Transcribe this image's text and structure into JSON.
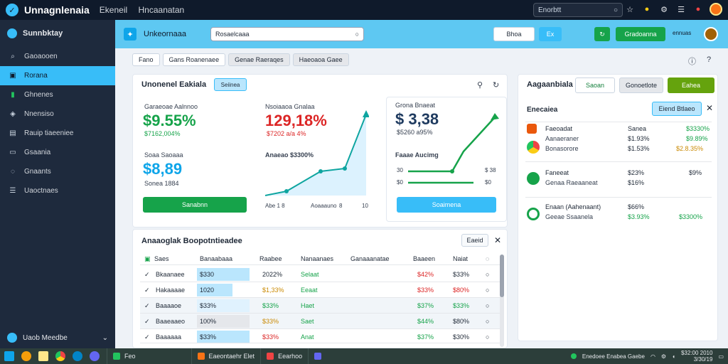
{
  "app": {
    "title": "Unnagnlenaia",
    "nav": [
      "Ekeneil",
      "Hncaanatan"
    ]
  },
  "topbar": {
    "search_text": "Enorbtt"
  },
  "sidebar": {
    "heading": "Sunnbktay",
    "items": [
      {
        "label": "Gaoaooen",
        "icon": "search-icon"
      },
      {
        "label": "Rorana",
        "icon": "dashboard-icon"
      },
      {
        "label": "Ghnenes",
        "icon": "book-icon"
      },
      {
        "label": "Nnensiso",
        "icon": "tag-icon"
      },
      {
        "label": "Rauip tiaeeniee",
        "icon": "chart-icon"
      },
      {
        "label": "Gsaania",
        "icon": "panel-icon"
      },
      {
        "label": "Gnaants",
        "icon": "chat-icon"
      },
      {
        "label": "Uaoctnaes",
        "icon": "list-icon"
      }
    ],
    "footer_label": "Uaob Meedbe"
  },
  "header": {
    "title": "Unkeornaaa",
    "search_placeholder": "Rosaelcaaa",
    "btn_white": "Bhoa",
    "btn_blue": "Ex",
    "btn_green": "Gradoanna",
    "small_text": "ennuas"
  },
  "filters": [
    "Fano",
    "Gans Roanenaee",
    "Genae Raeraqes",
    "Haeoaoa Gaee"
  ],
  "overview": {
    "title": "Unonenel Eakiala",
    "badge": "Seiinea",
    "kpi1": {
      "label": "Garaeoae Aalnnoo",
      "value": "$9.55%",
      "sub": "$7162,004%"
    },
    "kpi2": {
      "label": "Nsoiaaoa Gnalaa",
      "value": "129,18%",
      "sub": "$7202 a/a 4%"
    },
    "kpi3": {
      "label": "Soaa Saoaaa",
      "value": "$8,89",
      "sub": "Sonea 1884"
    },
    "kpi4": {
      "label": "Grona Bnaeat",
      "value": "$ 3,38",
      "sub": "$5260 a95%"
    },
    "chart_label_a": "Anaeao $3300%",
    "chart_label_b": "Faaae Aucimg",
    "axis_ticks": [
      "Abe 1 8",
      "Aoaaauno",
      "8",
      "10"
    ],
    "btn_green": "Sanabnn",
    "btn_blue": "Soaimena",
    "card_c_ticks": [
      "30",
      "$0",
      "$0",
      "$ 38",
      "$0"
    ]
  },
  "right_panel": {
    "title": "Aagaanbiala",
    "btn_green": "Saoan",
    "btn_gray": "Gonoetlote",
    "btn_lime": "Eahea",
    "subtitle": "Enecaiea",
    "light_btn": "Eiend Btlaeo",
    "rows": [
      {
        "t1": "Faeoadat",
        "t2": "Aanaeraner",
        "t3": "Bonasorore",
        "v1": "Sanea",
        "v2": "$3330%",
        "v3": "$1.93%",
        "v4": "$1.53%",
        "v5": "$9.89%",
        "v6": "$2.8.35%"
      },
      {
        "t1": "Faneeat",
        "t2": "Genaa Raeaaneat",
        "v1": "$23%",
        "v2": "$16%",
        "v3": "$9%"
      },
      {
        "t1": "Enaan (Aahenaant)",
        "t2": "Geeae Ssaanela",
        "v1": "$66%",
        "v2": "$3.93%",
        "v3": "$3300%"
      }
    ]
  },
  "table": {
    "title": "Anaaoglak Boopotntieadee",
    "btn": "Eaeid",
    "headers": [
      "Saes",
      "Banaabaaa",
      "Raabee",
      "Nanaanaes",
      "Ganaaanatae",
      "Baaeen",
      "Naiat"
    ],
    "rows": [
      {
        "name": "Bkaanaee",
        "bar": "$330",
        "c2": "2022%",
        "c3": "Selaat",
        "c4": "$42%",
        "c5": "$33%"
      },
      {
        "name": "Hakaaaae",
        "bar": "1020",
        "c2": "$1,33%",
        "c3": "Eeaat",
        "c4": "$33%",
        "c5": "$80%"
      },
      {
        "name": "Baaaaoe",
        "bar": "$33%",
        "c2": "$33%",
        "c3": "Haet",
        "c4": "$37%",
        "c5": "$33%"
      },
      {
        "name": "Baaeaaeo",
        "bar": "100%",
        "c2": "$33%",
        "c3": "Saet",
        "c4": "$44%",
        "c5": "$80%"
      },
      {
        "name": "Baaaaaa",
        "bar": "$33%",
        "c2": "$33%",
        "c3": "Anat",
        "c4": "$37%",
        "c5": "$30%"
      }
    ]
  },
  "taskbar": {
    "apps": [
      "Feo",
      "Eaeontaehr Elet",
      "Eearhoo"
    ],
    "tray_text": "Enedoee Enabea Gaebe",
    "clock": "$32:00 2010",
    "date": "3/30/19"
  },
  "colors": {
    "accent": "#38bdf8",
    "green": "#16a34a",
    "red": "#dc2626",
    "sidebar": "#1e2a3d"
  }
}
